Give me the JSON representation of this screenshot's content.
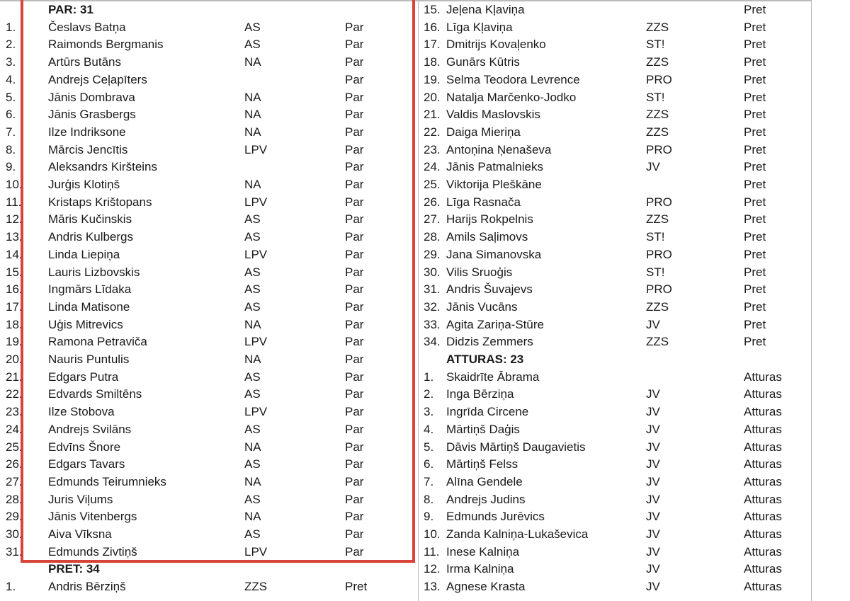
{
  "columns": [
    {
      "blocks": [
        {
          "heading": "PAR: 31",
          "rows": [
            {
              "no": "1.",
              "name": "Česlavs Batņa",
              "party": "AS",
              "vote": "Par"
            },
            {
              "no": "2.",
              "name": "Raimonds Bergmanis",
              "party": "AS",
              "vote": "Par"
            },
            {
              "no": "3.",
              "name": "Artūrs Butāns",
              "party": "NA",
              "vote": "Par"
            },
            {
              "no": "4.",
              "name": "Andrejs Ceļapīters",
              "vote": "Par"
            },
            {
              "no": "5.",
              "name": "Jānis Dombrava",
              "party": "NA",
              "vote": "Par"
            },
            {
              "no": "6.",
              "name": "Jānis Grasbergs",
              "party": "NA",
              "vote": "Par"
            },
            {
              "no": "7.",
              "name": "Ilze Indriksone",
              "party": "NA",
              "vote": "Par"
            },
            {
              "no": "8.",
              "name": "Mārcis Jencītis",
              "party": "LPV",
              "vote": "Par"
            },
            {
              "no": "9.",
              "name": "Aleksandrs Kiršteins",
              "vote": "Par"
            },
            {
              "no": "10.",
              "name": "Jurģis Klotiņš",
              "party": "NA",
              "vote": "Par"
            },
            {
              "no": "11.",
              "name": "Kristaps Krištopans",
              "party": "LPV",
              "vote": "Par"
            },
            {
              "no": "12.",
              "name": "Māris Kučinskis",
              "party": "AS",
              "vote": "Par"
            },
            {
              "no": "13.",
              "name": "Andris Kulbergs",
              "party": "AS",
              "vote": "Par"
            },
            {
              "no": "14.",
              "name": "Linda Liepiņa",
              "party": "LPV",
              "vote": "Par"
            },
            {
              "no": "15.",
              "name": "Lauris Lizbovskis",
              "party": "AS",
              "vote": "Par"
            },
            {
              "no": "16.",
              "name": "Ingmārs Līdaka",
              "party": "AS",
              "vote": "Par"
            },
            {
              "no": "17.",
              "name": "Linda Matisone",
              "party": "AS",
              "vote": "Par"
            },
            {
              "no": "18.",
              "name": "Uģis Mitrevics",
              "party": "NA",
              "vote": "Par"
            },
            {
              "no": "19.",
              "name": "Ramona Petraviča",
              "party": "LPV",
              "vote": "Par"
            },
            {
              "no": "20.",
              "name": "Nauris Puntulis",
              "party": "NA",
              "vote": "Par"
            },
            {
              "no": "21.",
              "name": "Edgars Putra",
              "party": "AS",
              "vote": "Par"
            },
            {
              "no": "22.",
              "name": "Edvards Smiltēns",
              "party": "AS",
              "vote": "Par"
            },
            {
              "no": "23.",
              "name": "Ilze Stobova",
              "party": "LPV",
              "vote": "Par"
            },
            {
              "no": "24.",
              "name": "Andrejs Svilāns",
              "party": "AS",
              "vote": "Par"
            },
            {
              "no": "25.",
              "name": "Edvīns Šnore",
              "party": "NA",
              "vote": "Par"
            },
            {
              "no": "26.",
              "name": "Edgars Tavars",
              "party": "AS",
              "vote": "Par"
            },
            {
              "no": "27.",
              "name": "Edmunds Teirumnieks",
              "party": "NA",
              "vote": "Par"
            },
            {
              "no": "28.",
              "name": "Juris Viļums",
              "party": "AS",
              "vote": "Par"
            },
            {
              "no": "29.",
              "name": "Jānis Vitenbergs",
              "party": "NA",
              "vote": "Par"
            },
            {
              "no": "30.",
              "name": "Aiva Vīksna",
              "party": "AS",
              "vote": "Par"
            },
            {
              "no": "31.",
              "name": "Edmunds Zivtiņš",
              "party": "LPV",
              "vote": "Par"
            }
          ]
        },
        {
          "heading": "PRET: 34",
          "rows": [
            {
              "no": "1.",
              "name": "Andris Bērziņš",
              "party": "ZZS",
              "vote": "Pret"
            }
          ]
        }
      ]
    },
    {
      "blocks": [
        {
          "rows": [
            {
              "no": "15.",
              "name": "Jeļena Kļaviņa",
              "vote": "Pret"
            },
            {
              "no": "16.",
              "name": "Līga Kļaviņa",
              "party": "ZZS",
              "vote": "Pret"
            },
            {
              "no": "17.",
              "name": "Dmitrijs Kovaļenko",
              "party": "ST!",
              "vote": "Pret"
            },
            {
              "no": "18.",
              "name": "Gunārs Kūtris",
              "party": "ZZS",
              "vote": "Pret"
            },
            {
              "no": "19.",
              "name": "Selma Teodora Levrence",
              "party": "PRO",
              "vote": "Pret"
            },
            {
              "no": "20.",
              "name": "Natalja Marčenko-Jodko",
              "party": "ST!",
              "vote": "Pret"
            },
            {
              "no": "21.",
              "name": "Valdis Maslovskis",
              "party": "ZZS",
              "vote": "Pret"
            },
            {
              "no": "22.",
              "name": "Daiga Mieriņa",
              "party": "ZZS",
              "vote": "Pret"
            },
            {
              "no": "23.",
              "name": "Antoņina Ņenaševa",
              "party": "PRO",
              "vote": "Pret"
            },
            {
              "no": "24.",
              "name": "Jānis Patmalnieks",
              "party": "JV",
              "vote": "Pret"
            },
            {
              "no": "25.",
              "name": "Viktorija Pleškāne",
              "vote": "Pret"
            },
            {
              "no": "26.",
              "name": "Līga Rasnača",
              "party": "PRO",
              "vote": "Pret"
            },
            {
              "no": "27.",
              "name": "Harijs Rokpelnis",
              "party": "ZZS",
              "vote": "Pret"
            },
            {
              "no": "28.",
              "name": "Amils Saļimovs",
              "party": "ST!",
              "vote": "Pret"
            },
            {
              "no": "29.",
              "name": "Jana Simanovska",
              "party": "PRO",
              "vote": "Pret"
            },
            {
              "no": "30.",
              "name": "Vilis Sruoģis",
              "party": "ST!",
              "vote": "Pret"
            },
            {
              "no": "31.",
              "name": "Andris Šuvajevs",
              "party": "PRO",
              "vote": "Pret"
            },
            {
              "no": "32.",
              "name": "Jānis Vucāns",
              "party": "ZZS",
              "vote": "Pret"
            },
            {
              "no": "33.",
              "name": "Agita Zariņa-Stūre",
              "party": "JV",
              "vote": "Pret"
            },
            {
              "no": "34.",
              "name": "Didzis Zemmers",
              "party": "ZZS",
              "vote": "Pret"
            }
          ]
        },
        {
          "heading": "ATTURAS: 23",
          "rows": [
            {
              "no": "1.",
              "name": "Skaidrīte Ābrama",
              "vote": "Atturas"
            },
            {
              "no": "2.",
              "name": "Inga Bērziņa",
              "party": "JV",
              "vote": "Atturas"
            },
            {
              "no": "3.",
              "name": "Ingrīda Circene",
              "party": "JV",
              "vote": "Atturas"
            },
            {
              "no": "4.",
              "name": "Mārtiņš Daģis",
              "party": "JV",
              "vote": "Atturas"
            },
            {
              "no": "5.",
              "name": "Dāvis Mārtiņš Daugavietis",
              "party": "JV",
              "vote": "Atturas"
            },
            {
              "no": "6.",
              "name": "Mārtiņš Felss",
              "party": "JV",
              "vote": "Atturas"
            },
            {
              "no": "7.",
              "name": "Alīna Gendele",
              "party": "JV",
              "vote": "Atturas"
            },
            {
              "no": "8.",
              "name": "Andrejs Judins",
              "party": "JV",
              "vote": "Atturas"
            },
            {
              "no": "9.",
              "name": "Edmunds Jurēvics",
              "party": "JV",
              "vote": "Atturas"
            },
            {
              "no": "10.",
              "name": "Zanda Kalniņa-Lukaševica",
              "party": "JV",
              "vote": "Atturas"
            },
            {
              "no": "11.",
              "name": "Inese Kalniņa",
              "party": "JV",
              "vote": "Atturas"
            },
            {
              "no": "12.",
              "name": "Irma Kalniņa",
              "party": "JV",
              "vote": "Atturas"
            },
            {
              "no": "13.",
              "name": "Agnese Krasta",
              "party": "JV",
              "vote": "Atturas"
            }
          ]
        }
      ]
    }
  ]
}
